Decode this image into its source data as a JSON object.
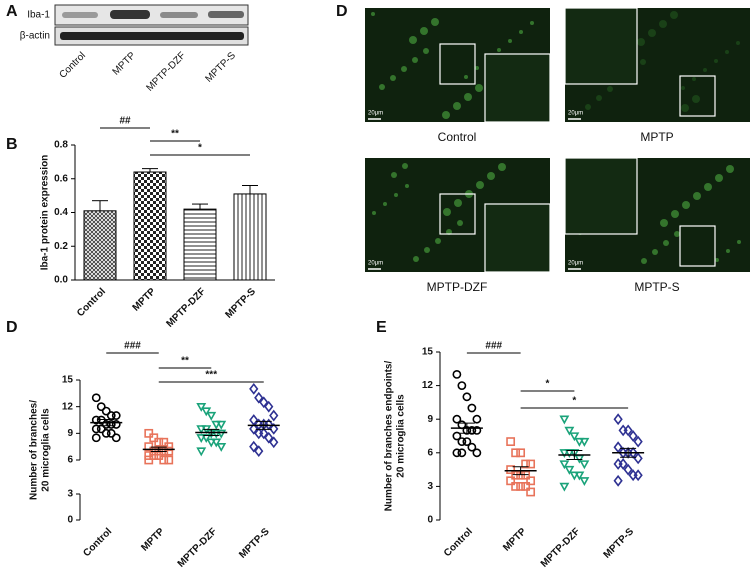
{
  "blot": {
    "panel": "A",
    "rows": [
      "Iba-1",
      "β-actin"
    ],
    "lanes": [
      "Control",
      "MPTP",
      "MPTP-DZF",
      "MPTP-S"
    ]
  },
  "micrographs": {
    "panel": "D",
    "scale_bar": "20μm",
    "captions": [
      "Control",
      "MPTP",
      "MPTP-DZF",
      "MPTP-S"
    ]
  },
  "chart_data": [
    {
      "type": "bar",
      "panel": "B",
      "ylabel": [
        "Iba-1 protein expression"
      ],
      "categories": [
        "Control",
        "MPTP",
        "MPTP-DZF",
        "MPTP-S"
      ],
      "values": [
        0.41,
        0.64,
        0.42,
        0.51
      ],
      "errors": [
        0.06,
        0.02,
        0.03,
        0.05
      ],
      "ylim": [
        0,
        0.8
      ],
      "yticks": [
        {
          "value": 0,
          "label": "0.0"
        },
        0.2,
        0.4,
        0.6,
        0.8
      ],
      "annotations": [
        "##",
        "**",
        "*"
      ]
    },
    {
      "type": "strip",
      "panel": "D",
      "ylabel": [
        "Number of branches/",
        "20 microglia cells"
      ],
      "ylim": [
        0,
        15
      ],
      "ybreak": [
        3,
        6
      ],
      "yticks": [
        0,
        3,
        6,
        9,
        12,
        15
      ],
      "annotations": [
        "###",
        "**",
        "***"
      ],
      "series": [
        {
          "name": "Control",
          "color": "#000000",
          "mean": 10.2,
          "sem": 0.35,
          "values": [
            13,
            12,
            11.5,
            11,
            11,
            10.5,
            10.5,
            10,
            10,
            10,
            9.5,
            9.5,
            9,
            9,
            8.5,
            8.5
          ]
        },
        {
          "name": "MPTP",
          "color": "#e8735a",
          "mean": 7.2,
          "sem": 0.25,
          "values": [
            9,
            8.5,
            8,
            8,
            7.5,
            7.5,
            7,
            7,
            7,
            7,
            6.5,
            6.5,
            6.5,
            6,
            6,
            6
          ]
        },
        {
          "name": "MPTP-DZF",
          "color": "#1aa37a",
          "mean": 9.1,
          "sem": 0.35,
          "values": [
            12,
            11.5,
            11,
            10,
            10,
            9.5,
            9.5,
            9,
            9,
            9,
            8.5,
            8.5,
            8,
            8,
            7.5,
            7
          ]
        },
        {
          "name": "MPTP-S",
          "color": "#2e3192",
          "mean": 9.9,
          "sem": 0.45,
          "values": [
            14,
            13,
            12.5,
            12,
            11,
            10.5,
            10,
            10,
            10,
            9.5,
            9.5,
            9,
            9,
            8.5,
            8,
            7.5,
            7
          ]
        }
      ]
    },
    {
      "type": "strip",
      "panel": "E",
      "ylabel": [
        "Number of branches endpoints/",
        "20 microglia cells"
      ],
      "ylim": [
        0,
        15
      ],
      "yticks": [
        0,
        3,
        6,
        9,
        12,
        15
      ],
      "annotations": [
        "###",
        "*",
        "*"
      ],
      "series": [
        {
          "name": "Control",
          "color": "#000000",
          "mean": 8.2,
          "sem": 0.45,
          "values": [
            13,
            12,
            11,
            10,
            9,
            9,
            8.5,
            8,
            8,
            8,
            7.5,
            7,
            7,
            6.5,
            6,
            6,
            6
          ]
        },
        {
          "name": "MPTP",
          "color": "#e8735a",
          "mean": 4.4,
          "sem": 0.35,
          "values": [
            7,
            6,
            6,
            5,
            5,
            4.5,
            4,
            4,
            4,
            3.5,
            3.5,
            3,
            3,
            3,
            2.5
          ]
        },
        {
          "name": "MPTP-DZF",
          "color": "#1aa37a",
          "mean": 5.8,
          "sem": 0.4,
          "values": [
            9,
            8,
            7.5,
            7,
            7,
            6,
            6,
            6,
            5.5,
            5,
            5,
            4.5,
            4,
            4,
            3.5,
            3
          ]
        },
        {
          "name": "MPTP-S",
          "color": "#2e3192",
          "mean": 6.0,
          "sem": 0.4,
          "values": [
            9,
            8,
            8,
            7.5,
            7,
            6.5,
            6,
            6,
            6,
            5.5,
            5,
            5,
            4.5,
            4,
            4,
            3.5
          ]
        }
      ]
    }
  ]
}
